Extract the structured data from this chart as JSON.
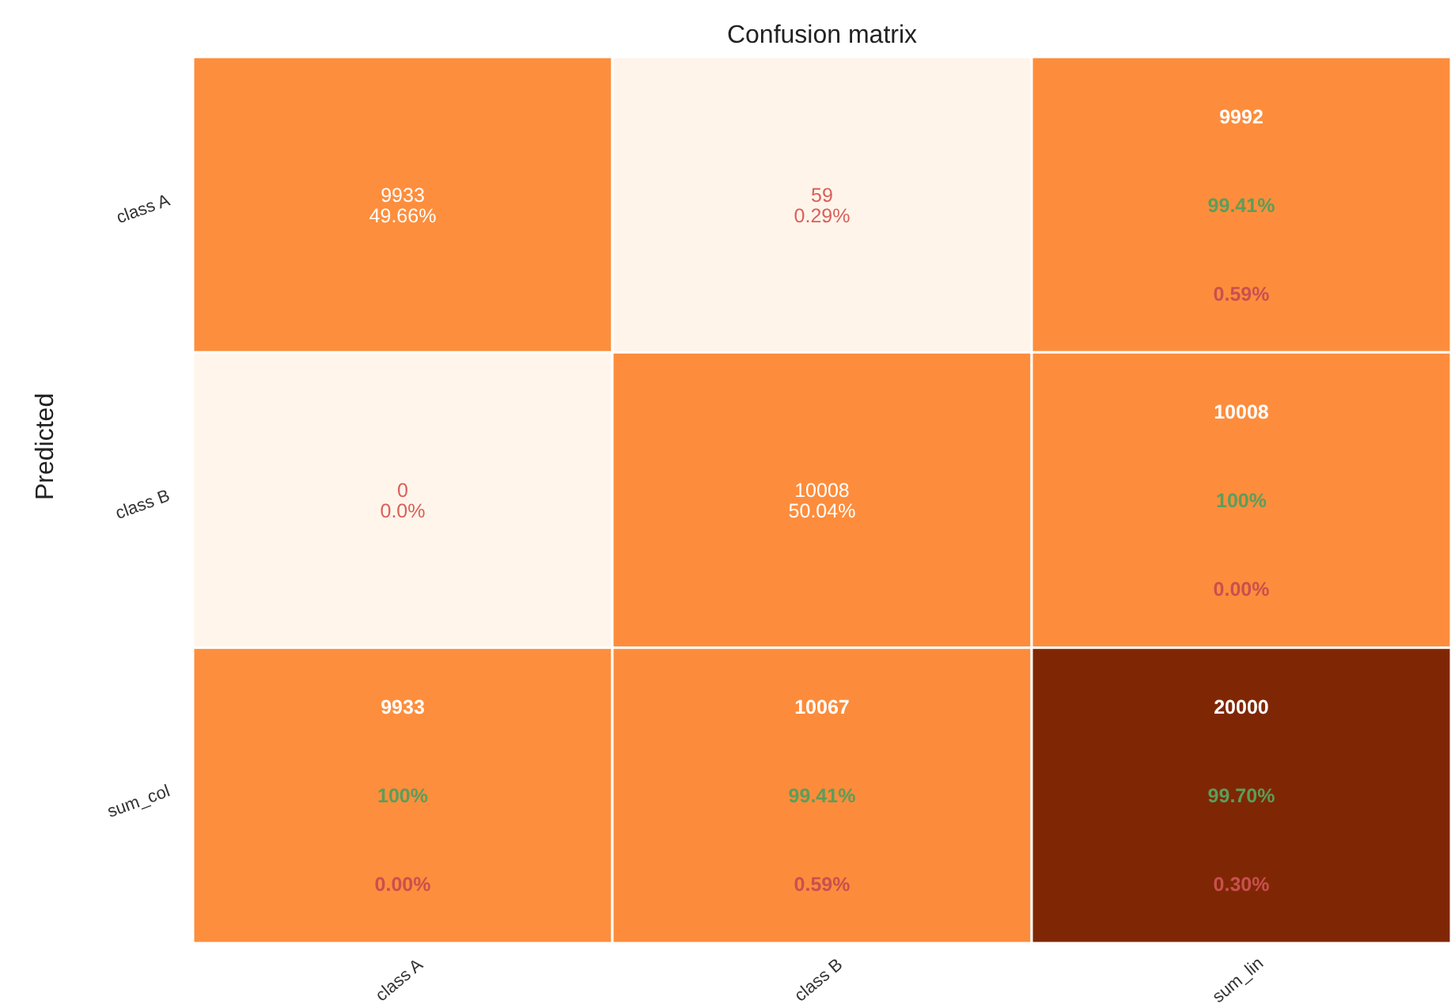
{
  "chart_data": {
    "type": "heatmap",
    "title": "Confusion matrix",
    "ylabel": "Predicted",
    "categories": [
      "class A",
      "class B",
      "sum_lin"
    ],
    "y_categories": [
      "class A",
      "class B",
      "sum_col"
    ],
    "cells": [
      [
        9933,
        59,
        9992
      ],
      [
        0,
        10008,
        10008
      ],
      [
        9933,
        10067,
        20000
      ]
    ],
    "data_labels": true,
    "annotations": [
      "49.66%",
      "0.29%",
      "99.41%",
      "0.59%",
      "0.0%",
      "50.04%",
      "100%",
      "0.00%",
      "100%",
      "0.00%",
      "99.41%",
      "0.59%",
      "99.70%",
      "0.30%"
    ]
  }
}
